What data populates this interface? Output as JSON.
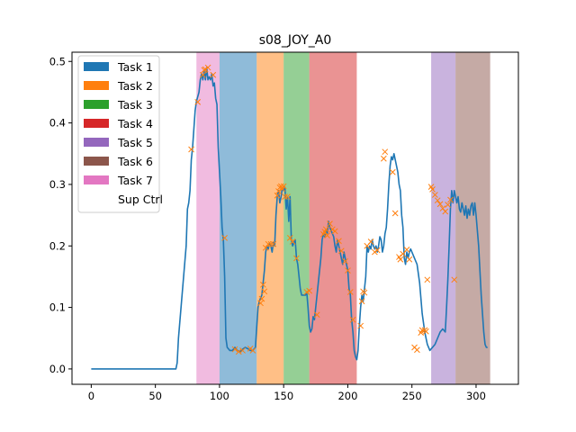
{
  "chart_data": {
    "type": "line",
    "title": "s08_JOY_A0",
    "xlabel": "",
    "ylabel": "",
    "xlim": [
      -15,
      333
    ],
    "ylim": [
      -0.025,
      0.515
    ],
    "xticks": [
      0,
      50,
      100,
      150,
      200,
      250,
      300
    ],
    "yticks": [
      0.0,
      0.1,
      0.2,
      0.3,
      0.4,
      0.5
    ],
    "ytick_labels": [
      "0.0",
      "0.1",
      "0.2",
      "0.3",
      "0.4",
      "0.5"
    ],
    "grid": false,
    "legend_position": "upper-left",
    "legend": [
      {
        "label": "Task 1",
        "color": "#1f77b4"
      },
      {
        "label": "Task 2",
        "color": "#ff7f0e"
      },
      {
        "label": "Task 3",
        "color": "#2ca02c"
      },
      {
        "label": "Task 4",
        "color": "#d62728"
      },
      {
        "label": "Task 5",
        "color": "#9467bd"
      },
      {
        "label": "Task 6",
        "color": "#8c564b"
      },
      {
        "label": "Task 7",
        "color": "#e377c2"
      },
      {
        "label": "Sup Ctrl",
        "color": "#ffffff"
      }
    ],
    "spans": [
      {
        "task": "Task 7",
        "x0": 82,
        "x1": 100,
        "color": "#e377c2"
      },
      {
        "task": "Task 1",
        "x0": 100,
        "x1": 129,
        "color": "#1f77b4"
      },
      {
        "task": "Task 2",
        "x0": 129,
        "x1": 150,
        "color": "#ff7f0e"
      },
      {
        "task": "Task 3",
        "x0": 150,
        "x1": 170,
        "color": "#2ca02c"
      },
      {
        "task": "Task 4",
        "x0": 170,
        "x1": 207,
        "color": "#d62728"
      },
      {
        "task": "Task 5",
        "x0": 265,
        "x1": 284,
        "color": "#9467bd"
      },
      {
        "task": "Task 6",
        "x0": 284,
        "x1": 311,
        "color": "#8c564b"
      }
    ],
    "line": {
      "color": "#1f77b4",
      "points": [
        [
          0,
          0.0
        ],
        [
          20,
          0.0
        ],
        [
          40,
          0.0
        ],
        [
          60,
          0.0
        ],
        [
          66,
          0.0
        ],
        [
          67,
          0.01
        ],
        [
          68,
          0.05
        ],
        [
          70,
          0.1
        ],
        [
          72,
          0.15
        ],
        [
          74,
          0.2
        ],
        [
          75,
          0.26
        ],
        [
          76,
          0.27
        ],
        [
          77,
          0.29
        ],
        [
          78,
          0.34
        ],
        [
          79,
          0.36
        ],
        [
          80,
          0.39
        ],
        [
          81,
          0.42
        ],
        [
          82,
          0.435
        ],
        [
          84,
          0.45
        ],
        [
          85,
          0.47
        ],
        [
          86,
          0.48
        ],
        [
          87,
          0.47
        ],
        [
          88,
          0.485
        ],
        [
          89,
          0.47
        ],
        [
          90,
          0.49
        ],
        [
          91,
          0.47
        ],
        [
          92,
          0.475
        ],
        [
          93,
          0.47
        ],
        [
          94,
          0.48
        ],
        [
          95,
          0.46
        ],
        [
          96,
          0.465
        ],
        [
          97,
          0.44
        ],
        [
          98,
          0.43
        ],
        [
          99,
          0.36
        ],
        [
          100,
          0.32
        ],
        [
          101,
          0.28
        ],
        [
          102,
          0.23
        ],
        [
          103,
          0.21
        ],
        [
          104,
          0.15
        ],
        [
          105,
          0.05
        ],
        [
          106,
          0.035
        ],
        [
          108,
          0.03
        ],
        [
          110,
          0.03
        ],
        [
          112,
          0.035
        ],
        [
          114,
          0.03
        ],
        [
          116,
          0.028
        ],
        [
          118,
          0.032
        ],
        [
          120,
          0.035
        ],
        [
          122,
          0.033
        ],
        [
          124,
          0.03
        ],
        [
          126,
          0.03
        ],
        [
          128,
          0.035
        ],
        [
          130,
          0.1
        ],
        [
          131,
          0.11
        ],
        [
          132,
          0.115
        ],
        [
          133,
          0.12
        ],
        [
          134,
          0.14
        ],
        [
          135,
          0.16
        ],
        [
          136,
          0.19
        ],
        [
          137,
          0.2
        ],
        [
          138,
          0.195
        ],
        [
          139,
          0.205
        ],
        [
          140,
          0.2
        ],
        [
          141,
          0.19
        ],
        [
          142,
          0.205
        ],
        [
          143,
          0.2
        ],
        [
          144,
          0.25
        ],
        [
          145,
          0.28
        ],
        [
          146,
          0.29
        ],
        [
          147,
          0.27
        ],
        [
          148,
          0.28
        ],
        [
          149,
          0.295
        ],
        [
          150,
          0.29
        ],
        [
          151,
          0.295
        ],
        [
          152,
          0.26
        ],
        [
          153,
          0.28
        ],
        [
          154,
          0.24
        ],
        [
          155,
          0.28
        ],
        [
          156,
          0.21
        ],
        [
          157,
          0.2
        ],
        [
          158,
          0.205
        ],
        [
          159,
          0.21
        ],
        [
          160,
          0.18
        ],
        [
          161,
          0.17
        ],
        [
          162,
          0.15
        ],
        [
          163,
          0.13
        ],
        [
          164,
          0.12
        ],
        [
          165,
          0.12
        ],
        [
          166,
          0.12
        ],
        [
          167,
          0.12
        ],
        [
          168,
          0.125
        ],
        [
          169,
          0.1
        ],
        [
          170,
          0.07
        ],
        [
          171,
          0.06
        ],
        [
          172,
          0.065
        ],
        [
          173,
          0.085
        ],
        [
          174,
          0.08
        ],
        [
          175,
          0.1
        ],
        [
          176,
          0.12
        ],
        [
          177,
          0.14
        ],
        [
          178,
          0.16
        ],
        [
          179,
          0.18
        ],
        [
          180,
          0.21
        ],
        [
          181,
          0.22
        ],
        [
          182,
          0.215
        ],
        [
          183,
          0.225
        ],
        [
          184,
          0.22
        ],
        [
          185,
          0.24
        ],
        [
          186,
          0.23
        ],
        [
          187,
          0.225
        ],
        [
          188,
          0.22
        ],
        [
          189,
          0.215
        ],
        [
          190,
          0.2
        ],
        [
          191,
          0.19
        ],
        [
          192,
          0.21
        ],
        [
          193,
          0.2
        ],
        [
          194,
          0.19
        ],
        [
          195,
          0.18
        ],
        [
          196,
          0.17
        ],
        [
          197,
          0.19
        ],
        [
          198,
          0.18
        ],
        [
          199,
          0.17
        ],
        [
          200,
          0.16
        ],
        [
          201,
          0.13
        ],
        [
          202,
          0.12
        ],
        [
          203,
          0.08
        ],
        [
          204,
          0.06
        ],
        [
          205,
          0.03
        ],
        [
          206,
          0.02
        ],
        [
          207,
          0.015
        ],
        [
          208,
          0.03
        ],
        [
          209,
          0.07
        ],
        [
          210,
          0.1
        ],
        [
          211,
          0.12
        ],
        [
          212,
          0.11
        ],
        [
          213,
          0.13
        ],
        [
          214,
          0.15
        ],
        [
          215,
          0.2
        ],
        [
          216,
          0.19
        ],
        [
          217,
          0.2
        ],
        [
          218,
          0.195
        ],
        [
          219,
          0.21
        ],
        [
          220,
          0.2
        ],
        [
          221,
          0.195
        ],
        [
          222,
          0.2
        ],
        [
          223,
          0.19
        ],
        [
          224,
          0.2
        ],
        [
          225,
          0.215
        ],
        [
          226,
          0.21
        ],
        [
          227,
          0.19
        ],
        [
          228,
          0.2
        ],
        [
          229,
          0.22
        ],
        [
          230,
          0.23
        ],
        [
          231,
          0.26
        ],
        [
          232,
          0.3
        ],
        [
          233,
          0.33
        ],
        [
          234,
          0.345
        ],
        [
          235,
          0.34
        ],
        [
          236,
          0.35
        ],
        [
          237,
          0.34
        ],
        [
          238,
          0.33
        ],
        [
          239,
          0.32
        ],
        [
          240,
          0.3
        ],
        [
          241,
          0.29
        ],
        [
          242,
          0.25
        ],
        [
          243,
          0.23
        ],
        [
          244,
          0.18
        ],
        [
          245,
          0.17
        ],
        [
          246,
          0.19
        ],
        [
          247,
          0.18
        ],
        [
          248,
          0.19
        ],
        [
          249,
          0.195
        ],
        [
          250,
          0.19
        ],
        [
          252,
          0.18
        ],
        [
          254,
          0.17
        ],
        [
          256,
          0.14
        ],
        [
          258,
          0.09
        ],
        [
          260,
          0.06
        ],
        [
          262,
          0.04
        ],
        [
          264,
          0.03
        ],
        [
          266,
          0.035
        ],
        [
          268,
          0.04
        ],
        [
          270,
          0.05
        ],
        [
          272,
          0.06
        ],
        [
          274,
          0.065
        ],
        [
          276,
          0.06
        ],
        [
          277,
          0.1
        ],
        [
          278,
          0.145
        ],
        [
          279,
          0.2
        ],
        [
          280,
          0.26
        ],
        [
          281,
          0.29
        ],
        [
          282,
          0.27
        ],
        [
          283,
          0.29
        ],
        [
          284,
          0.28
        ],
        [
          285,
          0.27
        ],
        [
          286,
          0.28
        ],
        [
          287,
          0.26
        ],
        [
          288,
          0.255
        ],
        [
          289,
          0.27
        ],
        [
          290,
          0.26
        ],
        [
          291,
          0.25
        ],
        [
          292,
          0.265
        ],
        [
          293,
          0.245
        ],
        [
          294,
          0.26
        ],
        [
          295,
          0.25
        ],
        [
          296,
          0.265
        ],
        [
          297,
          0.27
        ],
        [
          298,
          0.25
        ],
        [
          299,
          0.27
        ],
        [
          300,
          0.25
        ],
        [
          302,
          0.2
        ],
        [
          304,
          0.12
        ],
        [
          306,
          0.06
        ],
        [
          307,
          0.04
        ],
        [
          308,
          0.035
        ],
        [
          309,
          0.035
        ]
      ]
    },
    "markers": {
      "color": "#ff7f0e",
      "symbol": "x",
      "points": [
        [
          78,
          0.357
        ],
        [
          83,
          0.434
        ],
        [
          87,
          0.478
        ],
        [
          88,
          0.486
        ],
        [
          89,
          0.487
        ],
        [
          91,
          0.49
        ],
        [
          95,
          0.478
        ],
        [
          104,
          0.213
        ],
        [
          112,
          0.032
        ],
        [
          115,
          0.028
        ],
        [
          118,
          0.03
        ],
        [
          124,
          0.033
        ],
        [
          126,
          0.03
        ],
        [
          132,
          0.107
        ],
        [
          133,
          0.114
        ],
        [
          134,
          0.137
        ],
        [
          135,
          0.126
        ],
        [
          136,
          0.197
        ],
        [
          138,
          0.203
        ],
        [
          140,
          0.203
        ],
        [
          142,
          0.203
        ],
        [
          145,
          0.282
        ],
        [
          146,
          0.289
        ],
        [
          147,
          0.295
        ],
        [
          148,
          0.297
        ],
        [
          149,
          0.293
        ],
        [
          150,
          0.297
        ],
        [
          151,
          0.28
        ],
        [
          153,
          0.28
        ],
        [
          155,
          0.213
        ],
        [
          157,
          0.207
        ],
        [
          160,
          0.18
        ],
        [
          168,
          0.125
        ],
        [
          170,
          0.127
        ],
        [
          176,
          0.088
        ],
        [
          181,
          0.219
        ],
        [
          182,
          0.223
        ],
        [
          183,
          0.227
        ],
        [
          184,
          0.217
        ],
        [
          186,
          0.236
        ],
        [
          188,
          0.227
        ],
        [
          190,
          0.224
        ],
        [
          193,
          0.208
        ],
        [
          195,
          0.192
        ],
        [
          198,
          0.175
        ],
        [
          200,
          0.16
        ],
        [
          202,
          0.125
        ],
        [
          204,
          0.08
        ],
        [
          210,
          0.07
        ],
        [
          211,
          0.11
        ],
        [
          212,
          0.126
        ],
        [
          213,
          0.124
        ],
        [
          215,
          0.2
        ],
        [
          218,
          0.207
        ],
        [
          221,
          0.19
        ],
        [
          223,
          0.193
        ],
        [
          228,
          0.342
        ],
        [
          229,
          0.353
        ],
        [
          235,
          0.32
        ],
        [
          237,
          0.253
        ],
        [
          240,
          0.182
        ],
        [
          241,
          0.178
        ],
        [
          243,
          0.187
        ],
        [
          246,
          0.194
        ],
        [
          248,
          0.178
        ],
        [
          252,
          0.035
        ],
        [
          254,
          0.031
        ],
        [
          257,
          0.059
        ],
        [
          258,
          0.063
        ],
        [
          260,
          0.063
        ],
        [
          261,
          0.061
        ],
        [
          262,
          0.145
        ],
        [
          265,
          0.296
        ],
        [
          266,
          0.292
        ],
        [
          268,
          0.283
        ],
        [
          270,
          0.274
        ],
        [
          272,
          0.268
        ],
        [
          274,
          0.261
        ],
        [
          276,
          0.256
        ],
        [
          278,
          0.267
        ],
        [
          280,
          0.275
        ],
        [
          283,
          0.145
        ]
      ]
    }
  }
}
